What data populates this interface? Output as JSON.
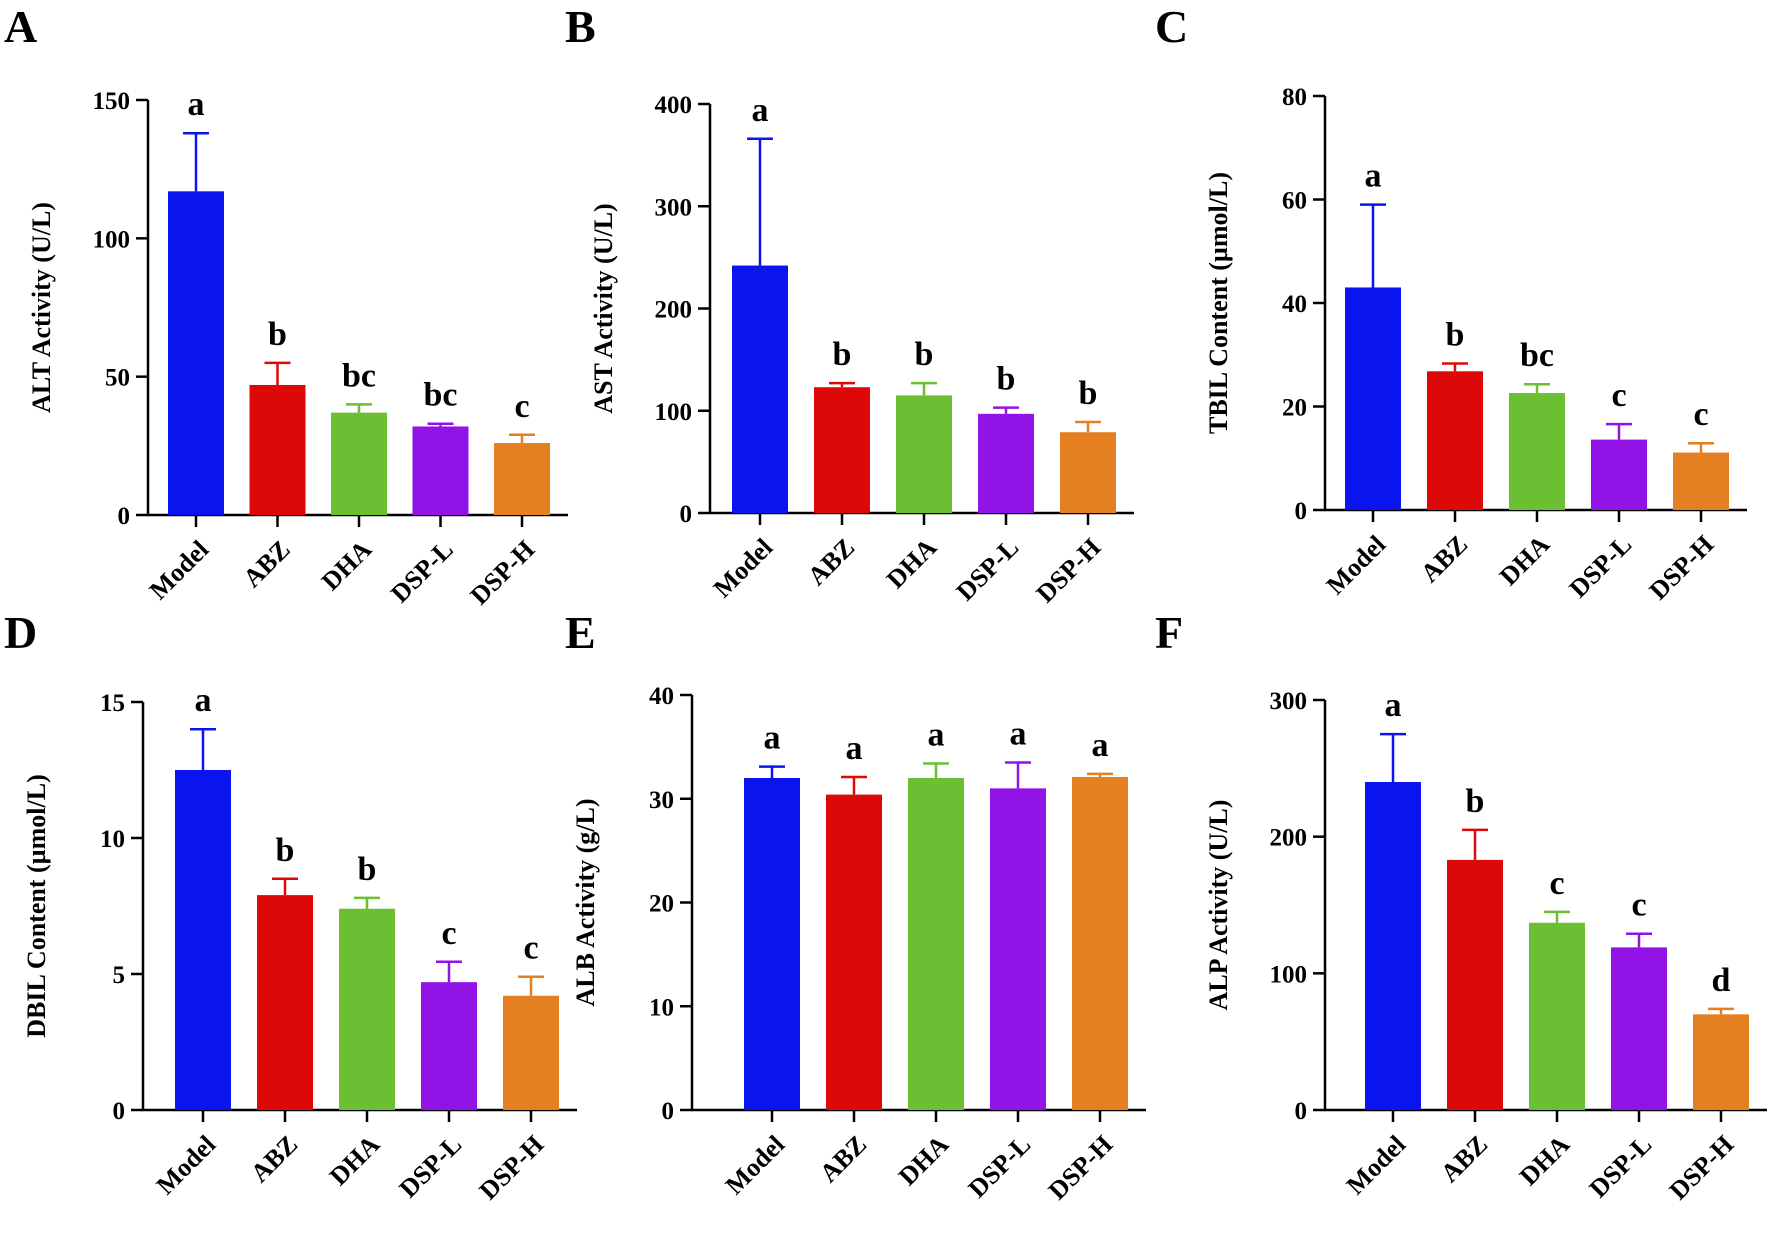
{
  "colors": {
    "Model": "#0a14ee",
    "ABZ": "#dd0808",
    "DHA": "#6cbf32",
    "DSP-L": "#9213e5",
    "DSP-H": "#e48022"
  },
  "chart_data": [
    {
      "type": "bar",
      "panel": "A",
      "ylabel": "ALT Activity (U/L)",
      "ylim": [
        0,
        150
      ],
      "yticks": [
        0,
        50,
        100,
        150
      ],
      "categories": [
        "Model",
        "ABZ",
        "DHA",
        "DSP-L",
        "DSP-H"
      ],
      "values": [
        117,
        47,
        37,
        32,
        26
      ],
      "errors": [
        21,
        8,
        3,
        1,
        3
      ],
      "letters": [
        "a",
        "b",
        "bc",
        "bc",
        "c"
      ]
    },
    {
      "type": "bar",
      "panel": "B",
      "ylabel": "AST Activity (U/L)",
      "ylim": [
        0,
        400
      ],
      "yticks": [
        0,
        100,
        200,
        300,
        400
      ],
      "categories": [
        "Model",
        "ABZ",
        "DHA",
        "DSP-L",
        "DSP-H"
      ],
      "values": [
        242,
        123,
        115,
        97,
        79
      ],
      "errors": [
        124,
        4,
        12,
        6,
        10
      ],
      "letters": [
        "a",
        "b",
        "b",
        "b",
        "b"
      ]
    },
    {
      "type": "bar",
      "panel": "C",
      "ylabel": "TBIL Content (µmol/L)",
      "ylim": [
        0,
        80
      ],
      "yticks": [
        0,
        20,
        40,
        60,
        80
      ],
      "categories": [
        "Model",
        "ABZ",
        "DHA",
        "DSP-L",
        "DSP-H"
      ],
      "values": [
        43,
        26.8,
        22.6,
        13.6,
        11.1
      ],
      "errors": [
        16,
        1.5,
        1.7,
        3,
        1.8
      ],
      "letters": [
        "a",
        "b",
        "bc",
        "c",
        "c"
      ]
    },
    {
      "type": "bar",
      "panel": "D",
      "ylabel": "DBIL Content (µmol/L)",
      "ylim": [
        0,
        15
      ],
      "yticks": [
        0,
        5,
        10,
        15
      ],
      "categories": [
        "Model",
        "ABZ",
        "DHA",
        "DSP-L",
        "DSP-H"
      ],
      "values": [
        12.5,
        7.9,
        7.4,
        4.7,
        4.2
      ],
      "errors": [
        1.5,
        0.6,
        0.4,
        0.75,
        0.7
      ],
      "letters": [
        "a",
        "b",
        "b",
        "c",
        "c"
      ]
    },
    {
      "type": "bar",
      "panel": "E",
      "ylabel": "ALB Activity (g/L)",
      "ylim": [
        0,
        40
      ],
      "yticks": [
        0,
        10,
        20,
        30,
        40
      ],
      "categories": [
        "Model",
        "ABZ",
        "DHA",
        "DSP-L",
        "DSP-H"
      ],
      "values": [
        32,
        30.4,
        32,
        31,
        32.1
      ],
      "errors": [
        1.1,
        1.7,
        1.4,
        2.5,
        0.3
      ],
      "letters": [
        "a",
        "a",
        "a",
        "a",
        "a"
      ]
    },
    {
      "type": "bar",
      "panel": "F",
      "ylabel": "ALP Activity (U/L)",
      "ylim": [
        0,
        300
      ],
      "yticks": [
        0,
        100,
        200,
        300
      ],
      "categories": [
        "Model",
        "ABZ",
        "DHA",
        "DSP-L",
        "DSP-H"
      ],
      "values": [
        240,
        183,
        137,
        119,
        70
      ],
      "errors": [
        35,
        22,
        8,
        10,
        4
      ],
      "letters": [
        "a",
        "b",
        "c",
        "c",
        "d"
      ]
    }
  ]
}
